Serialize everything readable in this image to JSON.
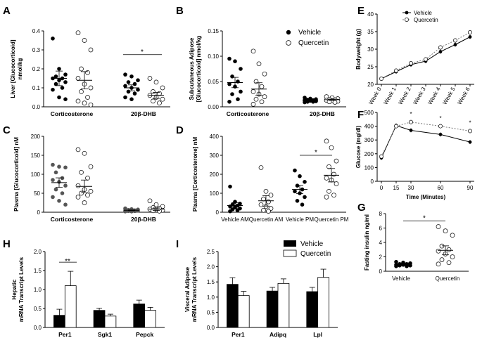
{
  "figure_panels": [
    "A",
    "B",
    "C",
    "D",
    "E",
    "F",
    "G",
    "H",
    "I"
  ],
  "legends": {
    "dot": {
      "vehicle": "Vehicle",
      "quercetin": "Quercetin"
    },
    "bar": {
      "vehicle": "Vehicle",
      "quercetin": "Quercetin"
    }
  },
  "chart_data": [
    {
      "id": "A",
      "type": "scatter",
      "ylabel": "Liver [Glucocorticoid] nmol/kg",
      "categories": [
        "Corticosterone",
        "20β-DHB"
      ],
      "yticks": [
        "0.0",
        "0.1",
        "0.2",
        "0.3",
        "0.4"
      ],
      "ylim": [
        0,
        0.4
      ],
      "vehicle": [
        [
          0.36,
          0.2,
          0.17,
          0.16,
          0.15,
          0.15,
          0.14,
          0.13,
          0.12,
          0.1,
          0.09,
          0.05,
          0.04
        ],
        [
          0.17,
          0.16,
          0.14,
          0.13,
          0.12,
          0.11,
          0.1,
          0.09,
          0.08,
          0.07,
          0.05,
          0.04
        ]
      ],
      "quercetin": [
        [
          0.39,
          0.35,
          0.3,
          0.2,
          0.18,
          0.15,
          0.12,
          0.1,
          0.08,
          0.05,
          0.03,
          0.02,
          0.01
        ],
        [
          0.15,
          0.13,
          0.1,
          0.08,
          0.07,
          0.06,
          0.05,
          0.04,
          0.03,
          0.02
        ]
      ],
      "vehicle_mean": [
        0.15,
        0.1
      ],
      "quercetin_mean": [
        0.14,
        0.06
      ],
      "annotations": [
        {
          "text": "*",
          "between": [
            1,
            1
          ]
        }
      ]
    },
    {
      "id": "B",
      "type": "scatter",
      "ylabel": "Subcutaneous Adipose [Glucocorticoid] nmol/kg",
      "categories": [
        "Corticosterone",
        "20β-DHB"
      ],
      "yticks": [
        "0.00",
        "0.05",
        "0.10",
        "0.15"
      ],
      "ylim": [
        0,
        0.15
      ],
      "vehicle": [
        [
          0.095,
          0.09,
          0.075,
          0.06,
          0.05,
          0.045,
          0.04,
          0.03,
          0.025,
          0.015,
          0.01
        ],
        [
          0.018,
          0.016,
          0.015,
          0.014,
          0.013,
          0.013,
          0.012,
          0.011,
          0.01,
          0.01,
          0.009
        ]
      ],
      "quercetin": [
        [
          0.11,
          0.085,
          0.065,
          0.05,
          0.04,
          0.03,
          0.025,
          0.02,
          0.015,
          0.01,
          0.005
        ],
        [
          0.02,
          0.018,
          0.016,
          0.015,
          0.014,
          0.013,
          0.012,
          0.011,
          0.01,
          0.009
        ]
      ],
      "vehicle_mean": [
        0.048,
        0.013
      ],
      "quercetin_mean": [
        0.035,
        0.014
      ]
    },
    {
      "id": "C",
      "type": "scatter",
      "ylabel": "Plasma [Glucocorticoid] nM",
      "categories": [
        "Corticosterone",
        "20β-DHB"
      ],
      "yticks": [
        "0",
        "50",
        "100",
        "150",
        "200"
      ],
      "ylim": [
        0,
        200
      ],
      "vehicle": [
        [
          125,
          120,
          118,
          105,
          90,
          85,
          80,
          70,
          60,
          50,
          40,
          30,
          20
        ],
        [
          10,
          8,
          7,
          6,
          5,
          5,
          4,
          4,
          3,
          3,
          2,
          2
        ]
      ],
      "quercetin": [
        [
          165,
          155,
          120,
          105,
          90,
          70,
          60,
          55,
          50,
          45,
          40,
          25
        ],
        [
          30,
          20,
          15,
          12,
          10,
          8,
          6,
          5,
          4,
          3
        ]
      ],
      "vehicle_mean": [
        78,
        5
      ],
      "quercetin_mean": [
        68,
        8
      ]
    },
    {
      "id": "D",
      "type": "scatter",
      "ylabel": "Plasma [Corticosterone] nM",
      "categories": [
        "Vehicle AM",
        "Quercetin AM",
        "Vehicle PM",
        "Quercetin PM"
      ],
      "yticks": [
        "0",
        "100",
        "200",
        "300",
        "400"
      ],
      "ylim": [
        0,
        400
      ],
      "series": [
        [
          135,
          55,
          45,
          40,
          35,
          30,
          25,
          20,
          15,
          10,
          5
        ],
        [
          235,
          110,
          90,
          70,
          55,
          40,
          30,
          20,
          10,
          5
        ],
        [
          220,
          190,
          160,
          140,
          120,
          110,
          100,
          80,
          60,
          40
        ],
        [
          375,
          340,
          270,
          240,
          200,
          180,
          170,
          150,
          110,
          90,
          80
        ]
      ],
      "means": [
        35,
        60,
        120,
        195
      ],
      "annotations": [
        {
          "text": "*",
          "between": [
            2,
            3
          ]
        }
      ]
    },
    {
      "id": "E",
      "type": "line",
      "ylabel": "Bodyweight (g)",
      "categories": [
        "Week 0",
        "Week 1",
        "Week 2",
        "Week 3",
        "Week 4",
        "Week 5",
        "Week 6"
      ],
      "yticks": [
        "20",
        "25",
        "30",
        "35",
        "40"
      ],
      "ylim": [
        20,
        40
      ],
      "series": [
        {
          "name": "Vehicle",
          "values": [
            21.6,
            23.6,
            25.6,
            26.6,
            29.3,
            31.3,
            33.5
          ]
        },
        {
          "name": "Quercetin",
          "values": [
            21.6,
            23.9,
            26.0,
            27.1,
            30.5,
            32.5,
            34.8
          ]
        }
      ]
    },
    {
      "id": "F",
      "type": "line",
      "ylabel": "Glucose (mg/dl)",
      "xlabel": "Time (Minutes)",
      "x": [
        0,
        15,
        30,
        60,
        90
      ],
      "xticks": [
        "0",
        "15",
        "30",
        "60",
        "90"
      ],
      "yticks": [
        "0",
        "100",
        "200",
        "300",
        "400",
        "500"
      ],
      "ylim": [
        0,
        500
      ],
      "series": [
        {
          "name": "Vehicle",
          "values": [
            170,
            405,
            370,
            340,
            285
          ]
        },
        {
          "name": "Quercetin",
          "values": [
            180,
            400,
            430,
            400,
            365
          ]
        }
      ],
      "annotations": [
        "*",
        "*",
        "*"
      ]
    },
    {
      "id": "G",
      "type": "scatter",
      "ylabel": "Fasting insulin ng/ml",
      "categories": [
        "Vehicle",
        "Quercetin"
      ],
      "yticks": [
        "0",
        "2",
        "4",
        "6",
        "8"
      ],
      "ylim": [
        0,
        8
      ],
      "series": [
        [
          1.3,
          1.2,
          1.1,
          1.0,
          1.0,
          0.9,
          0.9,
          0.8,
          0.8,
          0.7,
          0.7
        ],
        [
          6.2,
          5.6,
          5.0,
          3.5,
          3.0,
          2.8,
          2.4,
          2.0,
          1.6,
          1.2,
          1.0
        ]
      ],
      "means": [
        1.0,
        2.9
      ],
      "annotations": [
        {
          "text": "*",
          "between": [
            0,
            1
          ]
        }
      ]
    },
    {
      "id": "H",
      "type": "bar",
      "ylabel": "Hepatic mRNA Transcript Levels",
      "categories": [
        "Per1",
        "Sgk1",
        "Pepck"
      ],
      "yticks": [
        "0.0",
        "0.5",
        "1.0",
        "1.5",
        "2.0"
      ],
      "ylim": [
        0,
        2
      ],
      "series": [
        {
          "name": "Vehicle",
          "values": [
            0.32,
            0.45,
            0.62
          ],
          "err": [
            0.16,
            0.06,
            0.1
          ]
        },
        {
          "name": "Quercetin",
          "values": [
            1.1,
            0.3,
            0.45
          ],
          "err": [
            0.38,
            0.05,
            0.08
          ]
        }
      ],
      "annotations": [
        {
          "text": "**",
          "category": 0
        }
      ]
    },
    {
      "id": "I",
      "type": "bar",
      "ylabel": "Visceral Adipose mRNA Transcript Levels",
      "categories": [
        "Per1",
        "Adipq",
        "Lpl"
      ],
      "yticks": [
        "0.0",
        "0.5",
        "1.0",
        "1.5",
        "2.0",
        "2.5"
      ],
      "ylim": [
        0,
        2.5
      ],
      "series": [
        {
          "name": "Vehicle",
          "values": [
            1.42,
            1.2,
            1.18
          ],
          "err": [
            0.22,
            0.12,
            0.14
          ]
        },
        {
          "name": "Quercetin",
          "values": [
            1.05,
            1.45,
            1.65
          ],
          "err": [
            0.14,
            0.15,
            0.27
          ]
        }
      ]
    }
  ]
}
